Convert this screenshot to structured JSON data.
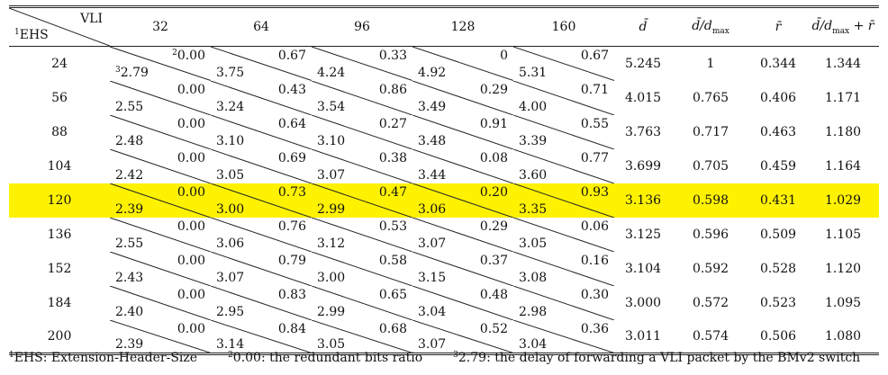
{
  "header": {
    "vli_label": "VLI",
    "ehs_label": "EHS",
    "ehs_sup": "1",
    "vli_values": [
      "32",
      "64",
      "96",
      "128",
      "160"
    ],
    "d_bar": "d̄",
    "d_ratio": "d̄/d",
    "d_ratio_sub": "max",
    "r_bar": "r̄",
    "sum_prefix": "d̄/d",
    "sum_sub": "max",
    "sum_suffix": " + r̄"
  },
  "rows": [
    {
      "ehs": "24",
      "cells": [
        {
          "top": "0.00",
          "top_sup": "2",
          "bottom": "2.79",
          "bottom_sup": "3"
        },
        {
          "top": "0.67",
          "bottom": "3.75"
        },
        {
          "top": "0.33",
          "bottom": "4.24"
        },
        {
          "top": "0",
          "bottom": "4.92"
        },
        {
          "top": "0.67",
          "bottom": "5.31"
        }
      ],
      "d": "5.245",
      "ratio": "1",
      "r": "0.344",
      "sum": "1.344"
    },
    {
      "ehs": "56",
      "cells": [
        {
          "top": "0.00",
          "bottom": "2.55"
        },
        {
          "top": "0.43",
          "bottom": "3.24"
        },
        {
          "top": "0.86",
          "bottom": "3.54"
        },
        {
          "top": "0.29",
          "bottom": "3.49"
        },
        {
          "top": "0.71",
          "bottom": "4.00"
        }
      ],
      "d": "4.015",
      "ratio": "0.765",
      "r": "0.406",
      "sum": "1.171"
    },
    {
      "ehs": "88",
      "cells": [
        {
          "top": "0.00",
          "bottom": "2.48"
        },
        {
          "top": "0.64",
          "bottom": "3.10"
        },
        {
          "top": "0.27",
          "bottom": "3.10"
        },
        {
          "top": "0.91",
          "bottom": "3.48"
        },
        {
          "top": "0.55",
          "bottom": "3.39"
        }
      ],
      "d": "3.763",
      "ratio": "0.717",
      "r": "0.463",
      "sum": "1.180"
    },
    {
      "ehs": "104",
      "cells": [
        {
          "top": "0.00",
          "bottom": "2.42"
        },
        {
          "top": "0.69",
          "bottom": "3.05"
        },
        {
          "top": "0.38",
          "bottom": "3.07"
        },
        {
          "top": "0.08",
          "bottom": "3.44"
        },
        {
          "top": "0.77",
          "bottom": "3.60"
        }
      ],
      "d": "3.699",
      "ratio": "0.705",
      "r": "0.459",
      "sum": "1.164"
    },
    {
      "ehs": "120",
      "highlight": true,
      "cells": [
        {
          "top": "0.00",
          "bottom": "2.39"
        },
        {
          "top": "0.73",
          "bottom": "3.00"
        },
        {
          "top": "0.47",
          "bottom": "2.99"
        },
        {
          "top": "0.20",
          "bottom": "3.06"
        },
        {
          "top": "0.93",
          "bottom": "3.35"
        }
      ],
      "d": "3.136",
      "ratio": "0.598",
      "r": "0.431",
      "sum": "1.029"
    },
    {
      "ehs": "136",
      "cells": [
        {
          "top": "0.00",
          "bottom": "2.55"
        },
        {
          "top": "0.76",
          "bottom": "3.06"
        },
        {
          "top": "0.53",
          "bottom": "3.12"
        },
        {
          "top": "0.29",
          "bottom": "3.07"
        },
        {
          "top": "0.06",
          "bottom": "3.05"
        }
      ],
      "d": "3.125",
      "ratio": "0.596",
      "r": "0.509",
      "sum": "1.105"
    },
    {
      "ehs": "152",
      "cells": [
        {
          "top": "0.00",
          "bottom": "2.43"
        },
        {
          "top": "0.79",
          "bottom": "3.07"
        },
        {
          "top": "0.58",
          "bottom": "3.00"
        },
        {
          "top": "0.37",
          "bottom": "3.15"
        },
        {
          "top": "0.16",
          "bottom": "3.08"
        }
      ],
      "d": "3.104",
      "ratio": "0.592",
      "r": "0.528",
      "sum": "1.120"
    },
    {
      "ehs": "184",
      "cells": [
        {
          "top": "0.00",
          "bottom": "2.40"
        },
        {
          "top": "0.83",
          "bottom": "2.95"
        },
        {
          "top": "0.65",
          "bottom": "2.99"
        },
        {
          "top": "0.48",
          "bottom": "3.04"
        },
        {
          "top": "0.30",
          "bottom": "2.98"
        }
      ],
      "d": "3.000",
      "ratio": "0.572",
      "r": "0.523",
      "sum": "1.095"
    },
    {
      "ehs": "200",
      "cells": [
        {
          "top": "0.00",
          "bottom": "2.39"
        },
        {
          "top": "0.84",
          "bottom": "3.14"
        },
        {
          "top": "0.68",
          "bottom": "3.05"
        },
        {
          "top": "0.52",
          "bottom": "3.07"
        },
        {
          "top": "0.36",
          "bottom": "3.04"
        }
      ],
      "d": "3.011",
      "ratio": "0.574",
      "r": "0.506",
      "sum": "1.080"
    }
  ],
  "footnotes": [
    {
      "sup": "1",
      "text": "EHS: Extension-Header-Size"
    },
    {
      "sup": "2",
      "text": "0.00: the redundant bits ratio"
    },
    {
      "sup": "3",
      "text": "2.79: the delay of forwarding a VLI packet by the BMv2 switch"
    }
  ],
  "colors": {
    "highlight": "#fef200",
    "rule": "#222222"
  }
}
